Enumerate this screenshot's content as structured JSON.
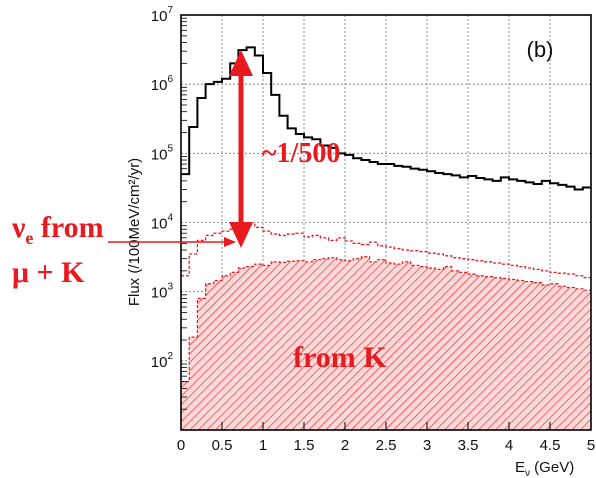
{
  "chart_data": {
    "type": "line",
    "panel_label": "(b)",
    "xlabel": "E",
    "xlabel_sub": "ν",
    "xlabel_unit": " (GeV)",
    "ylabel": "Flux (/100MeV/cm²/yr)",
    "xlim": [
      0,
      5
    ],
    "ylim_log10": [
      1,
      7
    ],
    "log_y": true,
    "grid": true,
    "xticks": [
      "0",
      "0.5",
      "1",
      "1.5",
      "2",
      "2.5",
      "3",
      "3.5",
      "4",
      "4.5",
      "5"
    ],
    "ytick_exponents": [
      "2",
      "3",
      "4",
      "5",
      "6",
      "7"
    ],
    "ytick_base": "10",
    "bin_width": 0.1,
    "series": [
      {
        "style": "solid-black-step",
        "values": [
          50000,
          240000,
          630000,
          1000000,
          1080000,
          1200000,
          2000000,
          3100000,
          3400000,
          2600000,
          1450000,
          700000,
          350000,
          230000,
          190000,
          170000,
          160000,
          130000,
          120000,
          100000,
          95000,
          85000,
          80000,
          75000,
          70000,
          70000,
          66000,
          64000,
          60000,
          58000,
          55000,
          52000,
          50000,
          48000,
          45000,
          47000,
          44000,
          42000,
          40000,
          45000,
          42000,
          40000,
          38000,
          36000,
          40000,
          37000,
          35000,
          33000,
          30000,
          32000
        ]
      },
      {
        "style": "dashed-red-step",
        "values": [
          1700,
          3500,
          5500,
          6500,
          7000,
          7500,
          8000,
          9000,
          9500,
          8500,
          7500,
          6800,
          6500,
          6800,
          7000,
          6200,
          6500,
          6000,
          5500,
          6000,
          5400,
          5000,
          4800,
          5200,
          4600,
          4400,
          4200,
          4000,
          3900,
          3800,
          3600,
          3500,
          3300,
          3100,
          3000,
          2900,
          2800,
          2700,
          2600,
          2500,
          2400,
          2300,
          2200,
          2100,
          2000,
          1900,
          1850,
          1800,
          1700,
          1600
        ]
      },
      {
        "style": "hatched-red-step",
        "values": [
          50,
          220,
          800,
          1300,
          1450,
          1700,
          1900,
          2200,
          2300,
          2500,
          2400,
          2700,
          2650,
          2750,
          2800,
          2700,
          2900,
          3000,
          3100,
          2900,
          2800,
          3000,
          3200,
          2700,
          2900,
          2600,
          2500,
          2700,
          2400,
          2300,
          2200,
          2100,
          2300,
          2000,
          1900,
          1800,
          1700,
          1650,
          1600,
          1550,
          1500,
          1450,
          1400,
          1350,
          1250,
          1300,
          1200,
          1150,
          1100,
          1050
        ]
      }
    ],
    "annotations": {
      "ratio_label": "~1/500",
      "nue_line1_base": "ν",
      "nue_line1_sub": "e",
      "nue_line1_rest": " from",
      "nue_line2": "μ + K",
      "from_k": "from K"
    },
    "colors": {
      "solid_line": "#000000",
      "red": "#e8191f",
      "hatch_fill": "#fbd9d9",
      "grid": "#777777"
    }
  }
}
